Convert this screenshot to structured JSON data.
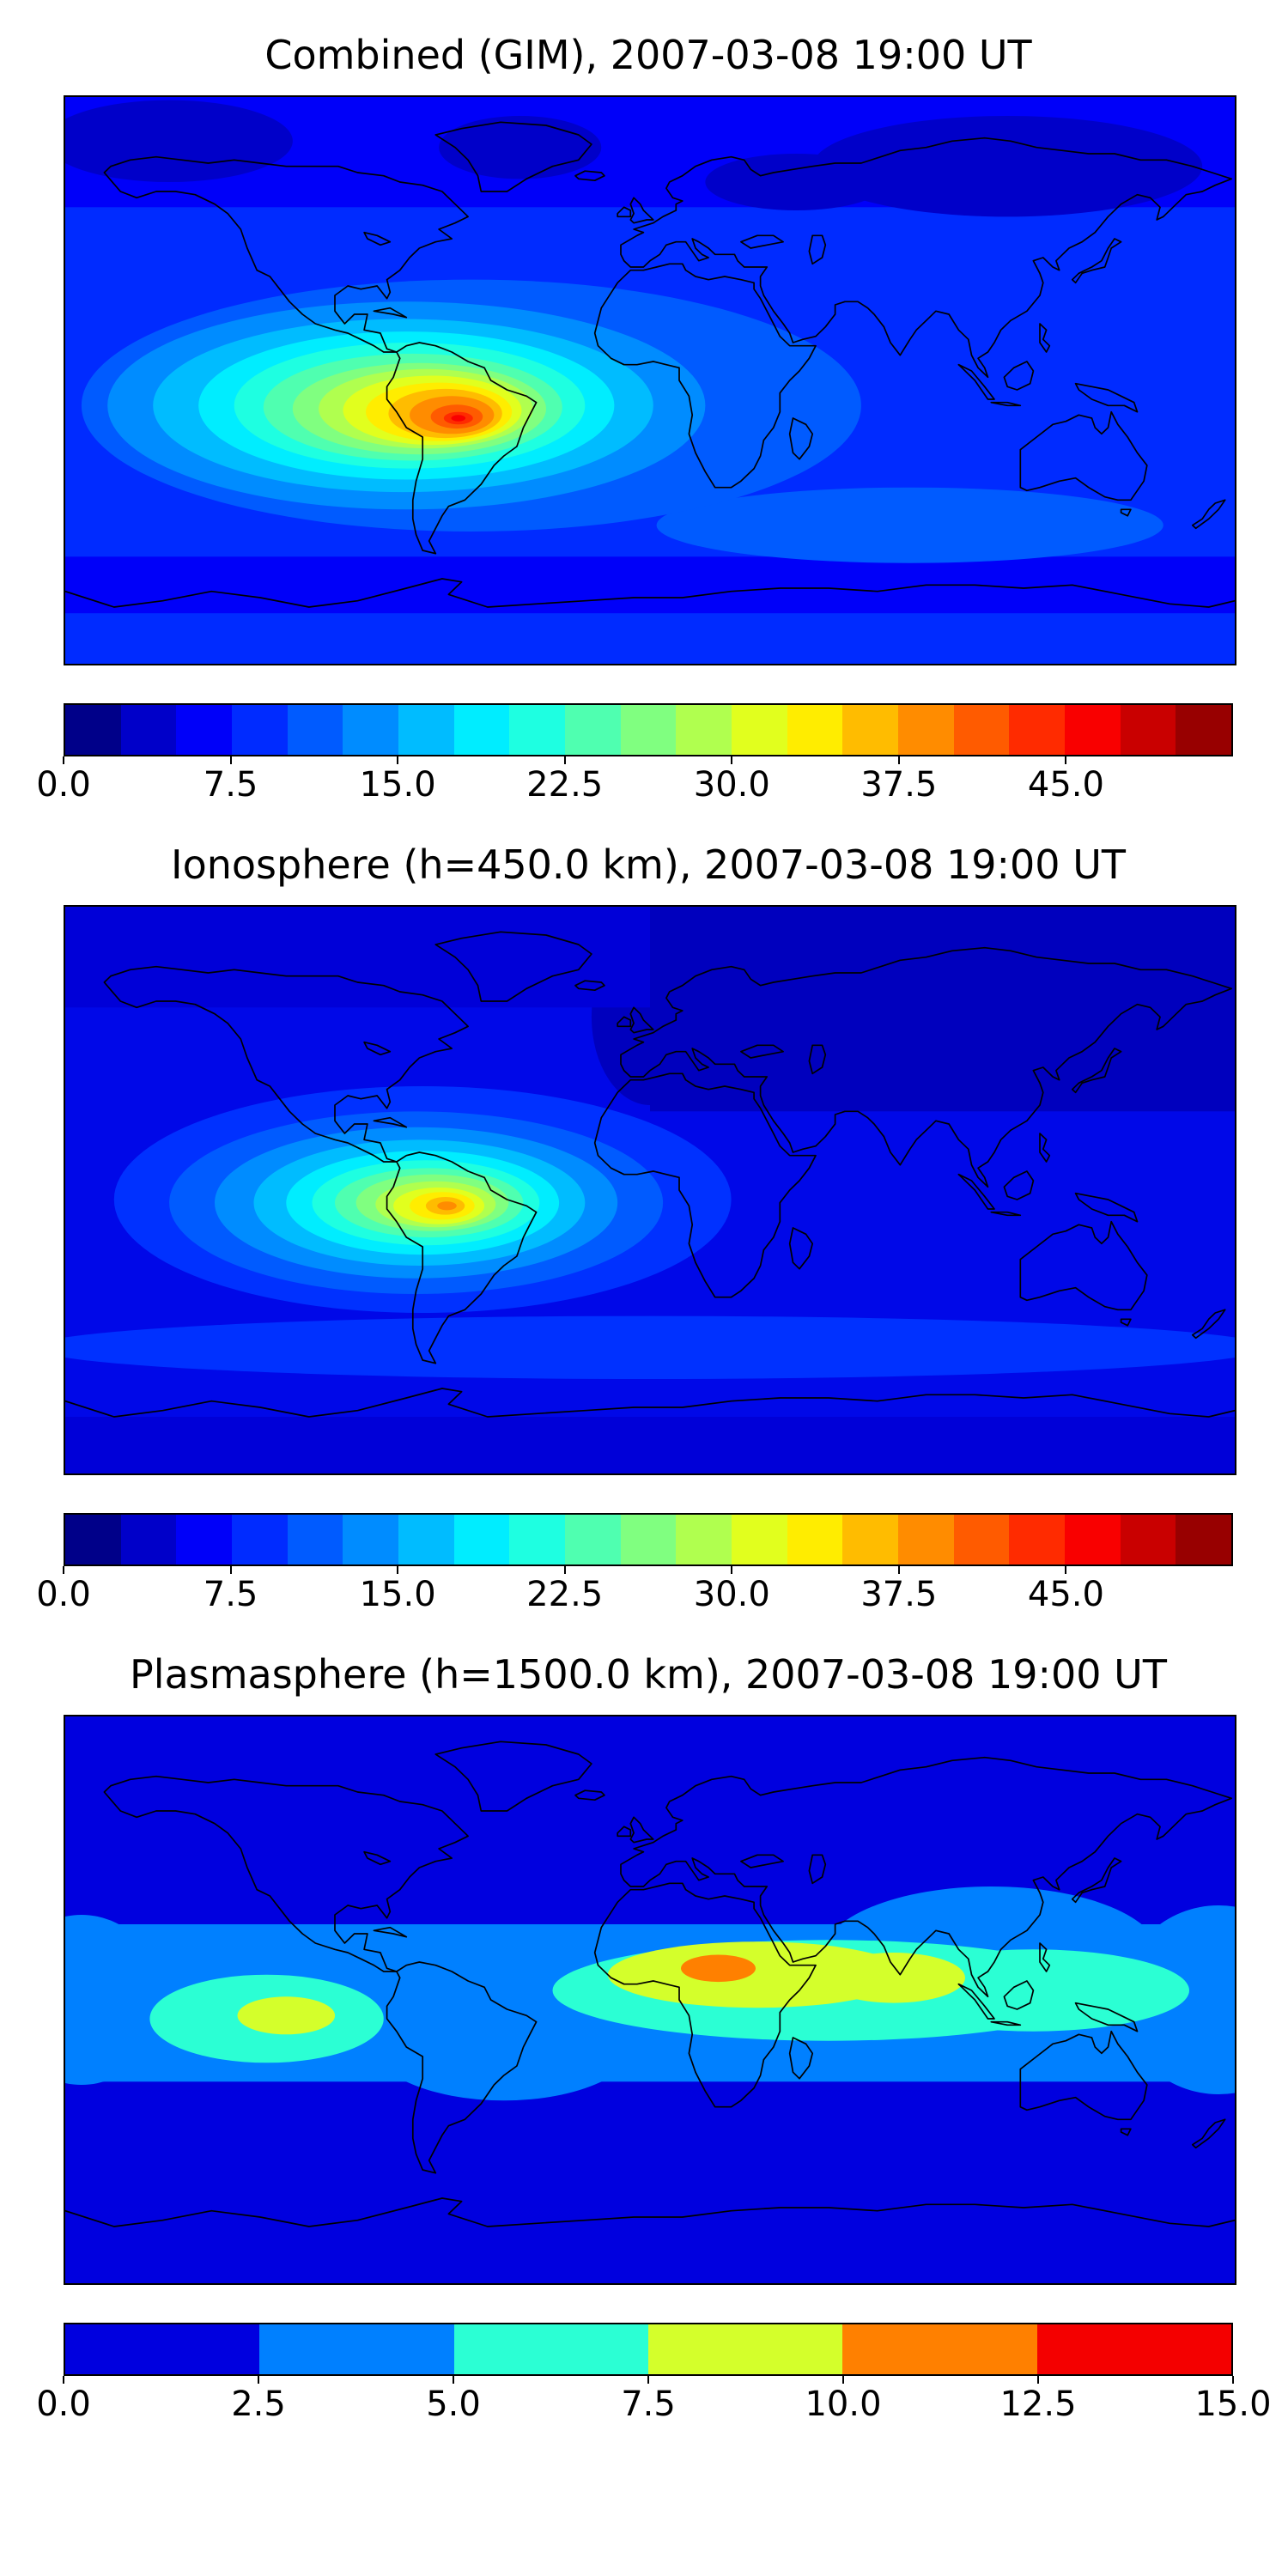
{
  "figure": {
    "background": "#ffffff",
    "description": "Three stacked filled-contour world maps of total electron content with horizontal colorbars"
  },
  "panels": [
    {
      "id": "combined",
      "title": "Combined (GIM), 2007-03-08 19:00 UT",
      "colorbar": {
        "orientation": "horizontal",
        "range_min": 0,
        "range_max": 52.5,
        "tick_values": [
          0,
          7.5,
          15,
          22.5,
          30,
          37.5,
          45
        ],
        "tick_labels": [
          "0.0",
          "7.5",
          "15.0",
          "22.5",
          "30.0",
          "37.5",
          "45.0"
        ],
        "segment_colors": [
          "#000089",
          "#0000C9",
          "#0000F9",
          "#002BFF",
          "#005BFF",
          "#008CFF",
          "#00BCFF",
          "#00EDFF",
          "#1EFFE1",
          "#4FFFB0",
          "#80FF80",
          "#B0FF4F",
          "#E1FF1E",
          "#FFED00",
          "#FFBC00",
          "#FF8C00",
          "#FF5B00",
          "#FF2B00",
          "#F90000",
          "#C90000",
          "#980000"
        ]
      }
    },
    {
      "id": "ionosphere",
      "title": "Ionosphere (h=450.0 km), 2007-03-08 19:00 UT",
      "colorbar": {
        "orientation": "horizontal",
        "range_min": 0,
        "range_max": 52.5,
        "tick_values": [
          0,
          7.5,
          15,
          22.5,
          30,
          37.5,
          45
        ],
        "tick_labels": [
          "0.0",
          "7.5",
          "15.0",
          "22.5",
          "30.0",
          "37.5",
          "45.0"
        ],
        "segment_colors": [
          "#000089",
          "#0000C9",
          "#0000F9",
          "#002BFF",
          "#005BFF",
          "#008CFF",
          "#00BCFF",
          "#00EDFF",
          "#1EFFE1",
          "#4FFFB0",
          "#80FF80",
          "#B0FF4F",
          "#E1FF1E",
          "#FFED00",
          "#FFBC00",
          "#FF8C00",
          "#FF5B00",
          "#FF2B00",
          "#F90000",
          "#C90000",
          "#980000"
        ]
      }
    },
    {
      "id": "plasmasphere",
      "title": "Plasmasphere (h=1500.0 km), 2007-03-08 19:00 UT",
      "colorbar": {
        "orientation": "horizontal",
        "range_min": 0,
        "range_max": 15,
        "tick_values": [
          0,
          2.5,
          5,
          7.5,
          10,
          12.5,
          15
        ],
        "tick_labels": [
          "0.0",
          "2.5",
          "5.0",
          "7.5",
          "10.0",
          "12.5",
          "15.0"
        ],
        "segment_colors": [
          "#0000DF",
          "#0080FF",
          "#2BFFD4",
          "#D4FF2B",
          "#FF8000",
          "#F40000"
        ]
      }
    }
  ],
  "chart_data": [
    {
      "type": "heatmap",
      "variant": "filled_contour_world_map",
      "title": "Combined (GIM), 2007-03-08 19:00 UT",
      "datetime_label": "2007-03-08 19:00 UT",
      "projection": "equirectangular",
      "lon_range": [
        -180,
        180
      ],
      "lat_range": [
        -90,
        90
      ],
      "colormap": "jet",
      "levels": {
        "min": 0,
        "max": 52.5,
        "step": 2.5
      },
      "colorbar_ticks": [
        0.0,
        7.5,
        15.0,
        22.5,
        30.0,
        37.5,
        45.0
      ],
      "grid": false,
      "coastlines": true,
      "features": [
        {
          "feature": "equatorial_anomaly_peak",
          "lon": -60,
          "lat": -12,
          "approx_value": 46
        },
        {
          "feature": "anomaly_yellow_region",
          "lon_range": [
            -110,
            -30
          ],
          "lat_range": [
            -22,
            0
          ],
          "approx_value_range": [
            30,
            40
          ]
        },
        {
          "feature": "anomaly_halo",
          "lon_range": [
            -175,
            25
          ],
          "lat_range": [
            -48,
            25
          ],
          "approx_value_range": [
            12,
            30
          ]
        },
        {
          "feature": "mid_ocean_background",
          "approx_value": 8
        },
        {
          "feature": "high_latitude_minimum",
          "region": "Arctic / northern Eurasia",
          "approx_value": 3
        }
      ]
    },
    {
      "type": "heatmap",
      "variant": "filled_contour_world_map",
      "title": "Ionosphere (h=450.0 km), 2007-03-08 19:00 UT",
      "datetime_label": "2007-03-08 19:00 UT",
      "height_km": 450.0,
      "projection": "equirectangular",
      "lon_range": [
        -180,
        180
      ],
      "lat_range": [
        -90,
        90
      ],
      "colormap": "jet",
      "levels": {
        "min": 0,
        "max": 52.5,
        "step": 2.5
      },
      "colorbar_ticks": [
        0.0,
        7.5,
        15.0,
        22.5,
        30.0,
        37.5,
        45.0
      ],
      "grid": false,
      "coastlines": true,
      "features": [
        {
          "feature": "equatorial_anomaly_peak",
          "lon": -64,
          "lat": -5,
          "approx_value": 36
        },
        {
          "feature": "anomaly_yellow_region",
          "lon_range": [
            -80,
            -50
          ],
          "lat_range": [
            -11,
            1
          ],
          "approx_value_range": [
            30,
            36
          ]
        },
        {
          "feature": "anomaly_halo",
          "lon_range": [
            -165,
            25
          ],
          "lat_range": [
            -40,
            33
          ],
          "approx_value_range": [
            10,
            25
          ]
        },
        {
          "feature": "night_side_minimum",
          "region": "Eurasia",
          "approx_value": 3
        }
      ]
    },
    {
      "type": "heatmap",
      "variant": "filled_contour_world_map",
      "title": "Plasmasphere (h=1500.0 km), 2007-03-08 19:00 UT",
      "datetime_label": "2007-03-08 19:00 UT",
      "height_km": 1500.0,
      "projection": "equirectangular",
      "lon_range": [
        -180,
        180
      ],
      "lat_range": [
        -90,
        90
      ],
      "colormap": "jet",
      "levels": {
        "min": 0,
        "max": 15,
        "step": 2.5
      },
      "colorbar_ticks": [
        0.0,
        2.5,
        5.0,
        7.5,
        10.0,
        12.5,
        15.0
      ],
      "grid": false,
      "coastlines": true,
      "features": [
        {
          "feature": "africa_peak",
          "lon": 21,
          "lat": 10,
          "approx_value": 11.5
        },
        {
          "feature": "africa_india_yellow_band",
          "lon_range": [
            -12,
            97
          ],
          "lat_range": [
            -3,
            18
          ],
          "approx_value_range": [
            7.5,
            10
          ]
        },
        {
          "feature": "east_pacific_blob",
          "lon": -112,
          "lat": -5,
          "approx_value": 8.5
        },
        {
          "feature": "equatorial_band",
          "lat_range": [
            -30,
            30
          ],
          "approx_value_range": [
            2.5,
            7.5
          ]
        },
        {
          "feature": "polar_background",
          "approx_value": 1.5
        }
      ]
    }
  ]
}
